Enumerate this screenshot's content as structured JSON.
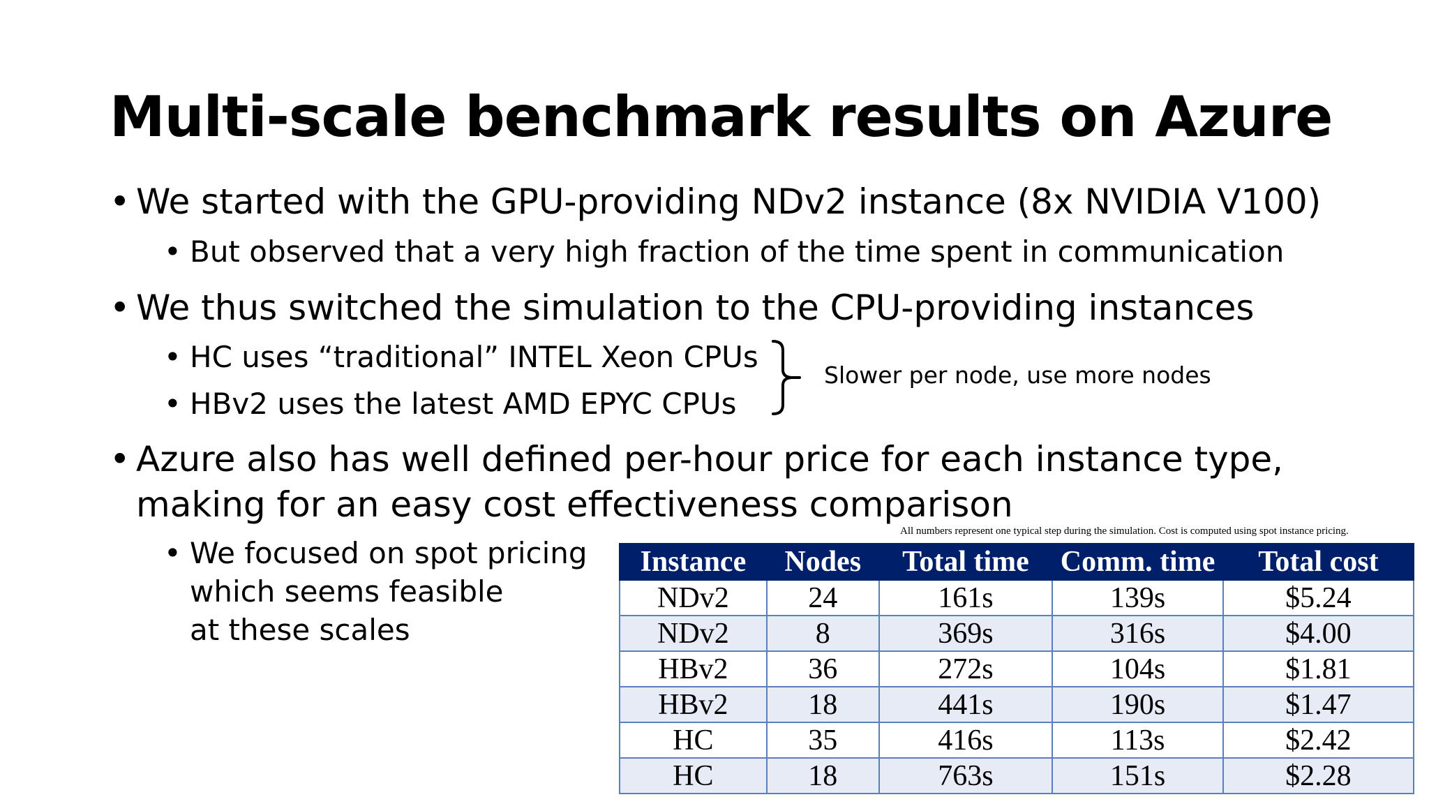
{
  "slide": {
    "title": "Multi-scale benchmark results on Azure",
    "bullet_char": "•",
    "bullets": {
      "b1": "We started with the GPU-providing NDv2 instance (8x NVIDIA V100)",
      "b1_sub1": "But observed that a very high fraction of the time spent in communication",
      "b2": "We thus switched the simulation to the CPU-providing instances",
      "b2_sub1": "HC uses “traditional” INTEL Xeon CPUs",
      "b2_sub2": "HBv2 uses the latest AMD EPYC CPUs",
      "b2_note": "Slower per node, use more nodes",
      "b3_line1": "Azure also has well defined per-hour price  for each instance type,",
      "b3_line2": "making for an easy cost effectiveness comparison",
      "b3_sub1_line1": "We focused on spot pricing",
      "b3_sub1_line2": "which seems feasible",
      "b3_sub1_line3": "at these scales"
    },
    "table_note": "All numbers represent one typical step during the simulation.  Cost is computed using spot instance pricing.",
    "table": {
      "headers": [
        "Instance",
        "Nodes",
        "Total time",
        "Comm. time",
        "Total cost"
      ],
      "rows": [
        [
          "NDv2",
          "24",
          "161s",
          "139s",
          "$5.24"
        ],
        [
          "NDv2",
          "8",
          "369s",
          "316s",
          "$4.00"
        ],
        [
          "HBv2",
          "36",
          "272s",
          "104s",
          "$1.81"
        ],
        [
          "HBv2",
          "18",
          "441s",
          "190s",
          "$1.47"
        ],
        [
          "HC",
          "35",
          "416s",
          "113s",
          "$2.42"
        ],
        [
          "HC",
          "18",
          "763s",
          "151s",
          "$2.28"
        ]
      ]
    },
    "colors": {
      "header_bg": "#001f6b",
      "border": "#5b7fbd",
      "alt_row": "#e6ebf5"
    }
  }
}
